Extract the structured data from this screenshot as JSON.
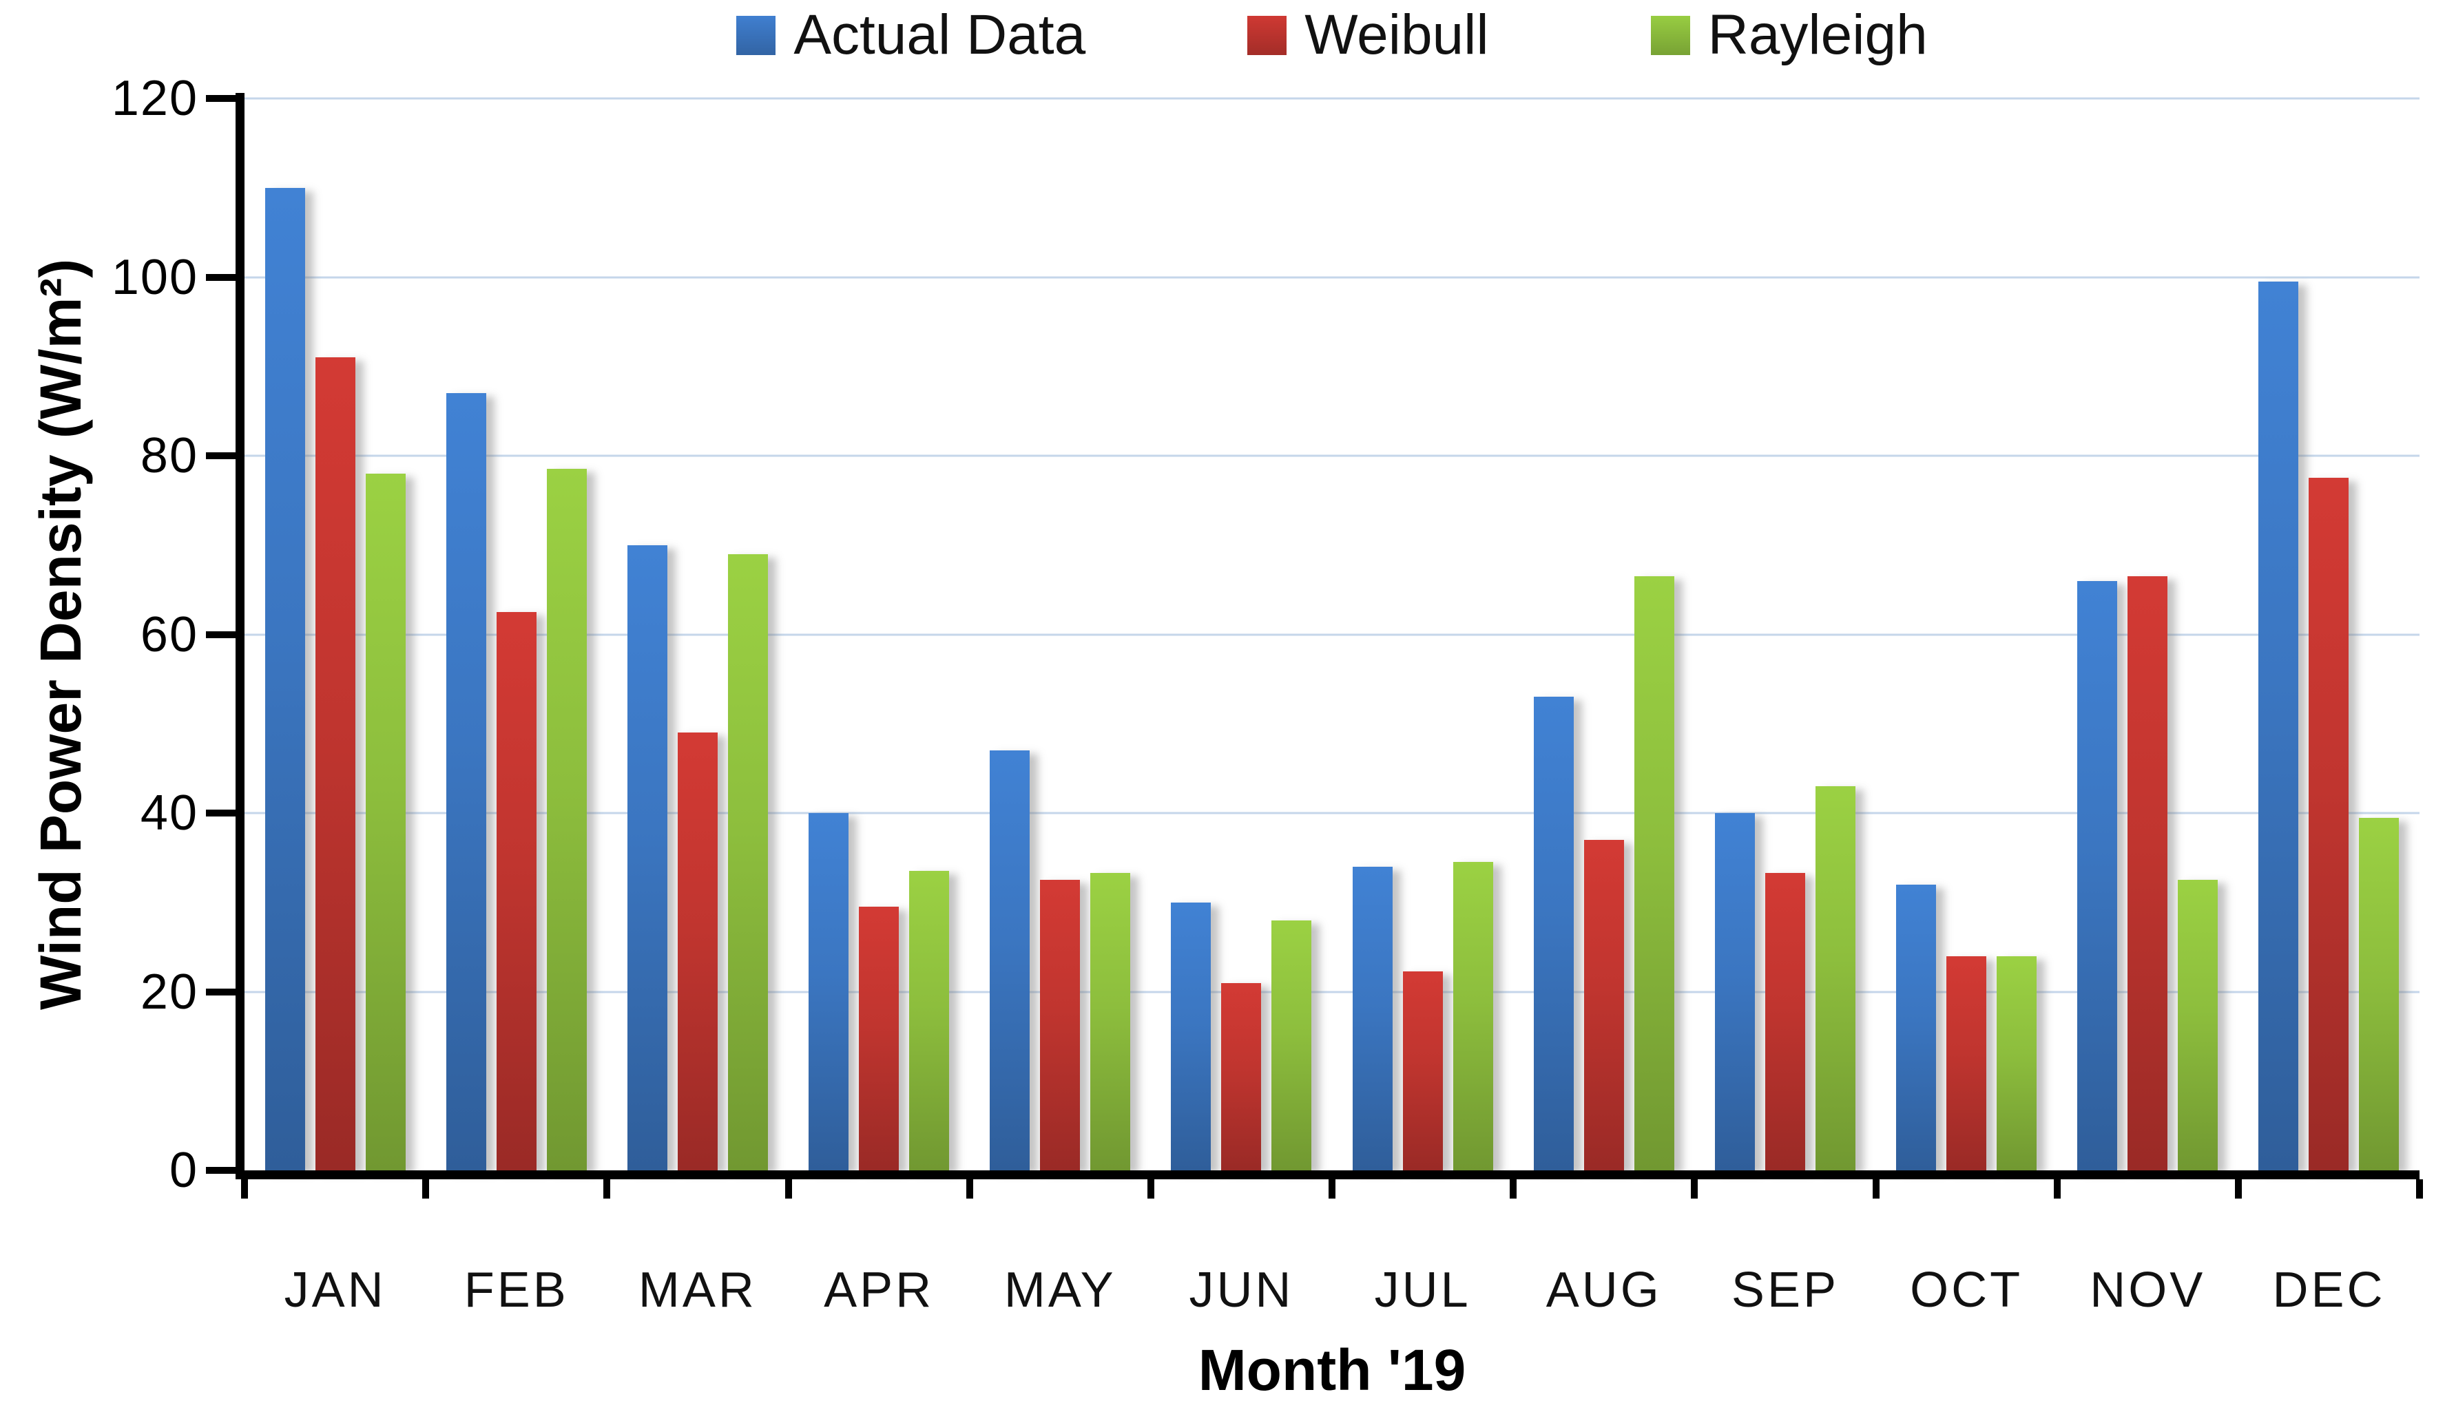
{
  "chart_data": {
    "type": "bar",
    "title": "",
    "xlabel": "Month '19",
    "ylabel": "Wind Power Density (W/m²)",
    "ylim": [
      0,
      120
    ],
    "yticks": [
      0,
      20,
      40,
      60,
      80,
      100,
      120
    ],
    "grid": true,
    "legend_position": "top",
    "categories": [
      "JAN",
      "FEB",
      "MAR",
      "APR",
      "MAY",
      "JUN",
      "JUL",
      "AUG",
      "SEP",
      "OCT",
      "NOV",
      "DEC"
    ],
    "series": [
      {
        "name": "Actual Data",
        "color": "#3b76c1",
        "values": [
          110,
          87,
          70,
          40,
          47,
          30,
          34,
          53,
          40,
          32,
          66,
          99.5
        ]
      },
      {
        "name": "Weibull",
        "color": "#c0352f",
        "values": [
          91,
          62.5,
          49,
          29.5,
          32.5,
          21,
          22.3,
          37,
          33.3,
          24,
          66.5,
          77.5
        ]
      },
      {
        "name": "Rayleigh",
        "color": "#8dbe3d",
        "values": [
          78,
          78.5,
          69,
          33.5,
          33.3,
          28,
          34.5,
          66.5,
          43,
          24,
          32.5,
          39.5
        ]
      }
    ],
    "axis_color": "#000000",
    "gridline_color": "#c5d6ea"
  }
}
